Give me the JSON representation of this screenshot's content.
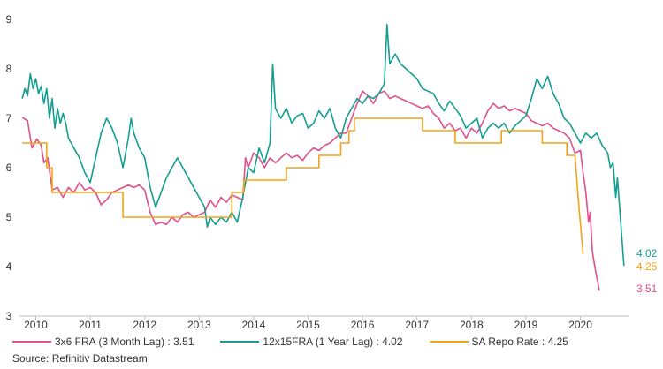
{
  "chart_data": {
    "type": "line",
    "title": "",
    "xlabel": "",
    "ylabel": "",
    "xlim": [
      2009.7,
      2020.9
    ],
    "ylim": [
      3,
      9
    ],
    "yticks": [
      "3",
      "4",
      "5",
      "6",
      "7",
      "8",
      "9"
    ],
    "xticks": [
      {
        "label": "2010",
        "value": 2010.0
      },
      {
        "label": "2011",
        "value": 2011.0
      },
      {
        "label": "2012",
        "value": 2012.0
      },
      {
        "label": "2013",
        "value": 2013.0
      },
      {
        "label": "2014",
        "value": 2014.0
      },
      {
        "label": "2015",
        "value": 2015.0
      },
      {
        "label": "2016",
        "value": 2016.0
      },
      {
        "label": "2017",
        "value": 2017.0
      },
      {
        "label": "2018",
        "value": 2018.0
      },
      {
        "label": "2019",
        "value": 2019.0
      },
      {
        "label": "2020",
        "value": 2020.0
      }
    ],
    "grid": false,
    "legend_position": "bottom",
    "series": [
      {
        "name": "3x6 FRA (3 Month Lag) : 3.51",
        "color": "#e0508a",
        "end_label": "3.51",
        "points": [
          [
            2009.75,
            7.02
          ],
          [
            2009.85,
            6.95
          ],
          [
            2009.93,
            6.4
          ],
          [
            2010.02,
            6.58
          ],
          [
            2010.1,
            6.45
          ],
          [
            2010.15,
            6.1
          ],
          [
            2010.22,
            6.2
          ],
          [
            2010.3,
            5.55
          ],
          [
            2010.4,
            5.6
          ],
          [
            2010.5,
            5.4
          ],
          [
            2010.6,
            5.6
          ],
          [
            2010.7,
            5.5
          ],
          [
            2010.8,
            5.7
          ],
          [
            2010.9,
            5.55
          ],
          [
            2011.0,
            5.6
          ],
          [
            2011.1,
            5.5
          ],
          [
            2011.2,
            5.25
          ],
          [
            2011.3,
            5.35
          ],
          [
            2011.4,
            5.5
          ],
          [
            2011.5,
            5.55
          ],
          [
            2011.6,
            5.6
          ],
          [
            2011.7,
            5.65
          ],
          [
            2011.8,
            5.6
          ],
          [
            2011.9,
            5.65
          ],
          [
            2012.0,
            5.55
          ],
          [
            2012.1,
            5.1
          ],
          [
            2012.2,
            4.85
          ],
          [
            2012.3,
            4.9
          ],
          [
            2012.4,
            4.85
          ],
          [
            2012.5,
            5.0
          ],
          [
            2012.6,
            4.9
          ],
          [
            2012.7,
            5.05
          ],
          [
            2012.8,
            5.1
          ],
          [
            2012.9,
            5.0
          ],
          [
            2013.0,
            5.05
          ],
          [
            2013.1,
            5.1
          ],
          [
            2013.2,
            5.35
          ],
          [
            2013.3,
            5.2
          ],
          [
            2013.4,
            5.4
          ],
          [
            2013.5,
            5.3
          ],
          [
            2013.6,
            5.45
          ],
          [
            2013.7,
            5.4
          ],
          [
            2013.8,
            5.35
          ],
          [
            2013.85,
            6.2
          ],
          [
            2013.9,
            6.0
          ],
          [
            2014.0,
            6.3
          ],
          [
            2014.1,
            6.2
          ],
          [
            2014.2,
            6.0
          ],
          [
            2014.3,
            6.2
          ],
          [
            2014.4,
            6.1
          ],
          [
            2014.5,
            6.2
          ],
          [
            2014.6,
            6.3
          ],
          [
            2014.7,
            6.2
          ],
          [
            2014.8,
            6.25
          ],
          [
            2014.9,
            6.15
          ],
          [
            2015.0,
            6.3
          ],
          [
            2015.1,
            6.4
          ],
          [
            2015.2,
            6.35
          ],
          [
            2015.3,
            6.45
          ],
          [
            2015.4,
            6.5
          ],
          [
            2015.5,
            6.6
          ],
          [
            2015.6,
            6.7
          ],
          [
            2015.7,
            6.7
          ],
          [
            2015.8,
            7.0
          ],
          [
            2015.9,
            7.3
          ],
          [
            2016.0,
            7.55
          ],
          [
            2016.1,
            7.45
          ],
          [
            2016.2,
            7.3
          ],
          [
            2016.3,
            7.5
          ],
          [
            2016.4,
            7.55
          ],
          [
            2016.5,
            7.4
          ],
          [
            2016.6,
            7.45
          ],
          [
            2016.7,
            7.4
          ],
          [
            2016.8,
            7.35
          ],
          [
            2016.9,
            7.3
          ],
          [
            2017.0,
            7.25
          ],
          [
            2017.1,
            7.2
          ],
          [
            2017.2,
            7.25
          ],
          [
            2017.3,
            7.1
          ],
          [
            2017.4,
            7.0
          ],
          [
            2017.5,
            6.8
          ],
          [
            2017.6,
            6.9
          ],
          [
            2017.7,
            6.75
          ],
          [
            2017.8,
            6.8
          ],
          [
            2017.9,
            6.6
          ],
          [
            2018.0,
            6.8
          ],
          [
            2018.1,
            6.7
          ],
          [
            2018.2,
            6.9
          ],
          [
            2018.3,
            7.15
          ],
          [
            2018.4,
            7.3
          ],
          [
            2018.5,
            7.2
          ],
          [
            2018.6,
            7.25
          ],
          [
            2018.7,
            7.15
          ],
          [
            2018.8,
            7.2
          ],
          [
            2018.9,
            7.15
          ],
          [
            2019.0,
            7.1
          ],
          [
            2019.1,
            6.95
          ],
          [
            2019.2,
            6.9
          ],
          [
            2019.3,
            6.85
          ],
          [
            2019.4,
            6.9
          ],
          [
            2019.5,
            6.8
          ],
          [
            2019.6,
            6.75
          ],
          [
            2019.7,
            6.7
          ],
          [
            2019.8,
            6.6
          ],
          [
            2019.9,
            6.3
          ],
          [
            2020.0,
            6.35
          ],
          [
            2020.05,
            5.9
          ],
          [
            2020.1,
            5.5
          ],
          [
            2020.15,
            4.9
          ],
          [
            2020.18,
            5.1
          ],
          [
            2020.22,
            4.3
          ],
          [
            2020.28,
            3.9
          ],
          [
            2020.35,
            3.51
          ]
        ]
      },
      {
        "name": "12x15FRA (1 Year Lag) : 4.02",
        "color": "#139e91",
        "end_label": "4.02",
        "points": [
          [
            2009.75,
            7.4
          ],
          [
            2009.8,
            7.6
          ],
          [
            2009.85,
            7.45
          ],
          [
            2009.9,
            7.9
          ],
          [
            2009.95,
            7.6
          ],
          [
            2010.0,
            7.8
          ],
          [
            2010.05,
            7.5
          ],
          [
            2010.1,
            7.65
          ],
          [
            2010.15,
            7.3
          ],
          [
            2010.2,
            7.6
          ],
          [
            2010.25,
            7.0
          ],
          [
            2010.3,
            7.4
          ],
          [
            2010.35,
            6.8
          ],
          [
            2010.4,
            7.2
          ],
          [
            2010.45,
            6.9
          ],
          [
            2010.5,
            7.1
          ],
          [
            2010.55,
            6.9
          ],
          [
            2010.6,
            6.6
          ],
          [
            2010.7,
            6.4
          ],
          [
            2010.8,
            6.2
          ],
          [
            2010.9,
            5.9
          ],
          [
            2011.0,
            5.7
          ],
          [
            2011.1,
            6.2
          ],
          [
            2011.2,
            6.7
          ],
          [
            2011.3,
            7.0
          ],
          [
            2011.4,
            6.8
          ],
          [
            2011.5,
            6.5
          ],
          [
            2011.6,
            6.0
          ],
          [
            2011.7,
            6.6
          ],
          [
            2011.75,
            7.0
          ],
          [
            2011.8,
            6.7
          ],
          [
            2011.9,
            6.4
          ],
          [
            2012.0,
            6.2
          ],
          [
            2012.1,
            5.6
          ],
          [
            2012.2,
            5.2
          ],
          [
            2012.3,
            5.5
          ],
          [
            2012.4,
            5.8
          ],
          [
            2012.5,
            6.0
          ],
          [
            2012.6,
            6.2
          ],
          [
            2012.7,
            6.0
          ],
          [
            2012.8,
            5.8
          ],
          [
            2012.9,
            5.6
          ],
          [
            2013.0,
            5.4
          ],
          [
            2013.1,
            5.2
          ],
          [
            2013.15,
            4.8
          ],
          [
            2013.2,
            5.0
          ],
          [
            2013.3,
            4.85
          ],
          [
            2013.4,
            5.0
          ],
          [
            2013.5,
            4.9
          ],
          [
            2013.6,
            5.1
          ],
          [
            2013.7,
            4.9
          ],
          [
            2013.8,
            5.4
          ],
          [
            2013.9,
            6.0
          ],
          [
            2014.0,
            5.9
          ],
          [
            2014.1,
            6.4
          ],
          [
            2014.2,
            6.1
          ],
          [
            2014.3,
            6.5
          ],
          [
            2014.35,
            8.1
          ],
          [
            2014.4,
            7.2
          ],
          [
            2014.5,
            7.0
          ],
          [
            2014.6,
            7.2
          ],
          [
            2014.7,
            6.9
          ],
          [
            2014.8,
            7.05
          ],
          [
            2014.9,
            7.1
          ],
          [
            2015.0,
            6.8
          ],
          [
            2015.1,
            6.9
          ],
          [
            2015.2,
            7.15
          ],
          [
            2015.3,
            7.0
          ],
          [
            2015.4,
            7.2
          ],
          [
            2015.5,
            6.8
          ],
          [
            2015.6,
            6.6
          ],
          [
            2015.7,
            7.0
          ],
          [
            2015.8,
            7.2
          ],
          [
            2015.9,
            7.4
          ],
          [
            2016.0,
            7.3
          ],
          [
            2016.1,
            7.45
          ],
          [
            2016.2,
            7.4
          ],
          [
            2016.3,
            7.5
          ],
          [
            2016.4,
            7.7
          ],
          [
            2016.45,
            8.9
          ],
          [
            2016.5,
            8.1
          ],
          [
            2016.6,
            8.3
          ],
          [
            2016.7,
            8.1
          ],
          [
            2016.8,
            8.0
          ],
          [
            2016.9,
            7.9
          ],
          [
            2017.0,
            7.8
          ],
          [
            2017.1,
            7.6
          ],
          [
            2017.2,
            7.55
          ],
          [
            2017.3,
            7.5
          ],
          [
            2017.4,
            7.3
          ],
          [
            2017.5,
            7.15
          ],
          [
            2017.6,
            7.35
          ],
          [
            2017.7,
            7.2
          ],
          [
            2017.8,
            7.05
          ],
          [
            2017.9,
            6.8
          ],
          [
            2018.0,
            6.9
          ],
          [
            2018.1,
            7.0
          ],
          [
            2018.2,
            6.6
          ],
          [
            2018.3,
            6.8
          ],
          [
            2018.4,
            6.9
          ],
          [
            2018.5,
            6.8
          ],
          [
            2018.6,
            6.9
          ],
          [
            2018.7,
            6.7
          ],
          [
            2018.8,
            6.85
          ],
          [
            2018.9,
            6.95
          ],
          [
            2019.0,
            7.05
          ],
          [
            2019.1,
            7.4
          ],
          [
            2019.2,
            7.8
          ],
          [
            2019.3,
            7.6
          ],
          [
            2019.4,
            7.85
          ],
          [
            2019.5,
            7.5
          ],
          [
            2019.6,
            7.3
          ],
          [
            2019.7,
            7.0
          ],
          [
            2019.8,
            6.9
          ],
          [
            2019.9,
            6.7
          ],
          [
            2020.0,
            6.5
          ],
          [
            2020.1,
            6.7
          ],
          [
            2020.2,
            6.6
          ],
          [
            2020.3,
            6.7
          ],
          [
            2020.4,
            6.45
          ],
          [
            2020.5,
            6.3
          ],
          [
            2020.55,
            6.0
          ],
          [
            2020.6,
            6.1
          ],
          [
            2020.65,
            5.4
          ],
          [
            2020.68,
            5.8
          ],
          [
            2020.72,
            5.2
          ],
          [
            2020.76,
            4.6
          ],
          [
            2020.8,
            4.02
          ]
        ]
      },
      {
        "name": "SA Repo Rate : 4.25",
        "color": "#f5a21b",
        "end_label": "4.25",
        "points": [
          [
            2009.75,
            6.5
          ],
          [
            2010.2,
            6.5
          ],
          [
            2010.2,
            6.0
          ],
          [
            2010.3,
            6.0
          ],
          [
            2010.3,
            5.5
          ],
          [
            2011.6,
            5.5
          ],
          [
            2011.6,
            5.0
          ],
          [
            2013.6,
            5.0
          ],
          [
            2013.6,
            5.5
          ],
          [
            2013.82,
            5.5
          ],
          [
            2013.82,
            5.75
          ],
          [
            2014.6,
            5.75
          ],
          [
            2014.6,
            6.0
          ],
          [
            2015.2,
            6.0
          ],
          [
            2015.2,
            6.25
          ],
          [
            2015.6,
            6.25
          ],
          [
            2015.6,
            6.5
          ],
          [
            2015.75,
            6.5
          ],
          [
            2015.75,
            6.75
          ],
          [
            2015.85,
            6.75
          ],
          [
            2015.85,
            7.0
          ],
          [
            2017.1,
            7.0
          ],
          [
            2017.1,
            6.75
          ],
          [
            2017.7,
            6.75
          ],
          [
            2017.7,
            6.5
          ],
          [
            2018.55,
            6.5
          ],
          [
            2018.55,
            6.75
          ],
          [
            2019.3,
            6.75
          ],
          [
            2019.3,
            6.5
          ],
          [
            2019.75,
            6.5
          ],
          [
            2019.75,
            6.25
          ],
          [
            2019.9,
            6.25
          ],
          [
            2019.97,
            5.25
          ],
          [
            2020.05,
            4.25
          ]
        ]
      }
    ]
  },
  "source": "Source: Refinitiv Datastream"
}
